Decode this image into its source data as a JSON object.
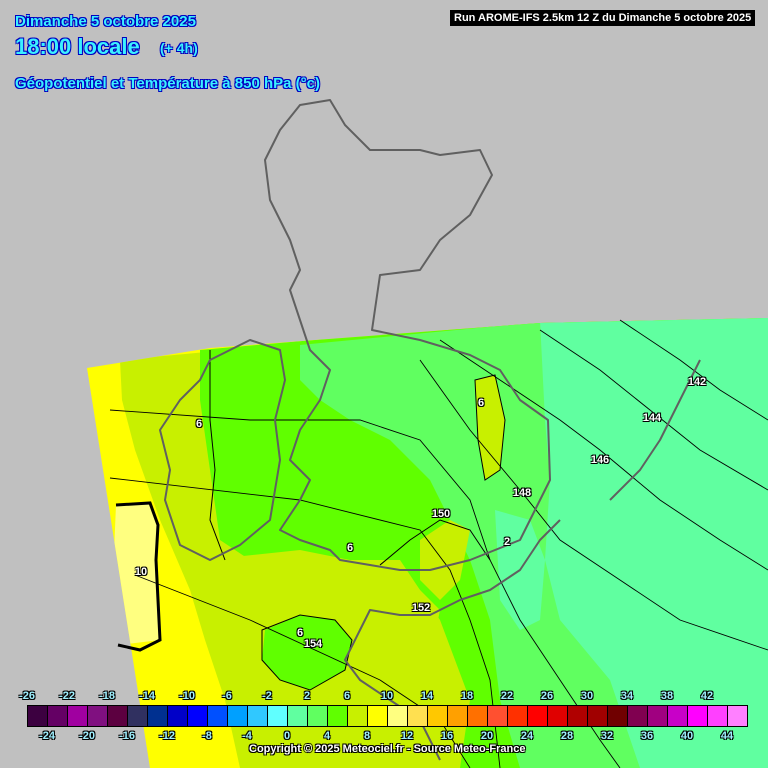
{
  "header": {
    "date": "Dimanche 5 octobre 2025",
    "time": "18:00 locale",
    "offset": "(+ 4h)",
    "field": "Géopotentiel et Température à 850 hPa (°c)"
  },
  "run_info": "Run AROME-IFS 2.5km 12 Z du Dimanche 5 octobre 2025",
  "copyright": "Copyright © 2025 Meteociel.fr - Source Meteo-France",
  "geopotential_labels": [
    "142",
    "144",
    "146",
    "148",
    "150",
    "152",
    "154"
  ],
  "temperature_labels": [
    "6",
    "6",
    "6",
    "6",
    "10",
    "2"
  ],
  "legend": {
    "unit": "°c",
    "top_labels": [
      "-26",
      "-22",
      "-18",
      "-14",
      "-10",
      "-6",
      "-2",
      "2",
      "6",
      "10",
      "14",
      "18",
      "22",
      "26",
      "30",
      "34",
      "38",
      "42"
    ],
    "bottom_labels": [
      "-24",
      "-20",
      "-16",
      "-12",
      "-8",
      "-4",
      "0",
      "4",
      "8",
      "12",
      "16",
      "20",
      "24",
      "28",
      "32",
      "36",
      "40",
      "44"
    ],
    "colors": [
      "#3c0040",
      "#640064",
      "#a000a0",
      "#801080",
      "#5c0040",
      "#303060",
      "#003090",
      "#0000c8",
      "#0000ff",
      "#0050ff",
      "#00a0ff",
      "#30c8ff",
      "#60ffff",
      "#60ffa0",
      "#60ff60",
      "#60ff00",
      "#c8f000",
      "#ffff00",
      "#ffff80",
      "#ffe050",
      "#ffc800",
      "#ffa000",
      "#ff7000",
      "#ff5030",
      "#ff3000",
      "#ff0000",
      "#e00000",
      "#b00000",
      "#a00000",
      "#700000",
      "#800050",
      "#a00080",
      "#c800c8",
      "#ff00ff",
      "#ff40ff",
      "#ff80ff"
    ]
  },
  "colors": {
    "background": "#c0c0c0",
    "coastline": "#606060",
    "contour": "#000000",
    "header_text": "#3cf0ff"
  }
}
